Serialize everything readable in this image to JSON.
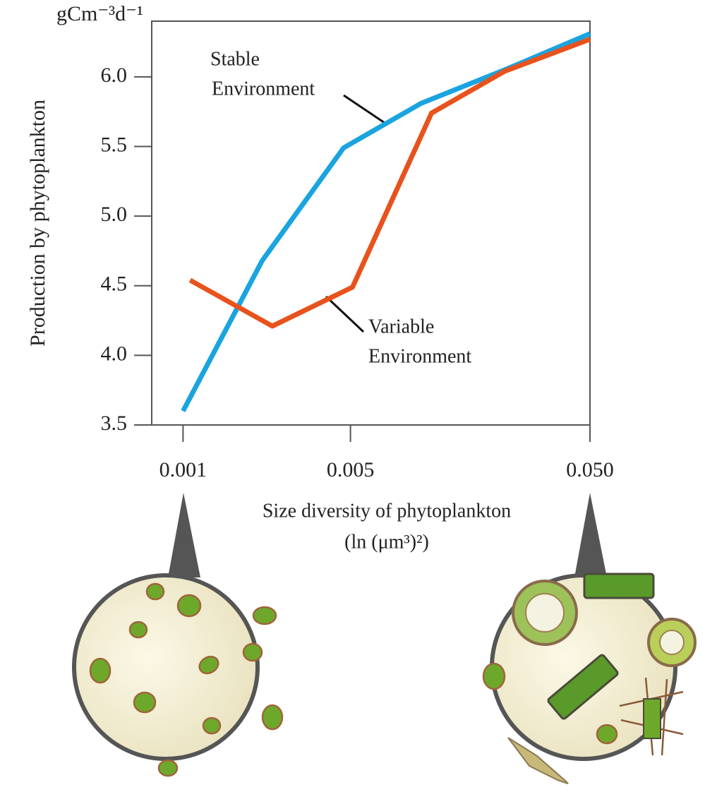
{
  "chart_data": {
    "type": "line",
    "y_unit": "gCm⁻³d⁻¹",
    "ylabel": "Production by phytoplankton",
    "xlabel": [
      "Size diversity of phytoplankton",
      "(ln (μm³)²)"
    ],
    "xscale": "log",
    "xlim": [
      0.00074,
      0.05
    ],
    "xticks": [
      0.001,
      0.005,
      {
        "value": 0.05,
        "label": "0.050"
      }
    ],
    "ylim": [
      3.5,
      6.4
    ],
    "yticks": [
      {
        "value": 3.5,
        "label": "3.5"
      },
      {
        "value": 4,
        "label": "4.0"
      },
      {
        "value": 4.5,
        "label": "4.5"
      },
      {
        "value": 5,
        "label": "5.0"
      },
      {
        "value": 5.5,
        "label": "5.5"
      },
      {
        "value": 6,
        "label": "6.0"
      }
    ],
    "series": [
      {
        "label": [
          "Stable",
          "Environment"
        ],
        "color": "#1aa4e0",
        "x": [
          0.001,
          0.00214,
          0.00468,
          0.00986,
          0.022,
          0.05
        ],
        "values": [
          3.6,
          4.68,
          5.49,
          5.81,
          6.05,
          6.31
        ]
      },
      {
        "label": [
          "Variable",
          "Environment"
        ],
        "color": "#e8521c",
        "x": [
          0.00107,
          0.00236,
          0.0051,
          0.0109,
          0.022,
          0.05
        ],
        "values": [
          4.54,
          4.21,
          4.49,
          5.74,
          6.04,
          6.27
        ]
      }
    ]
  }
}
